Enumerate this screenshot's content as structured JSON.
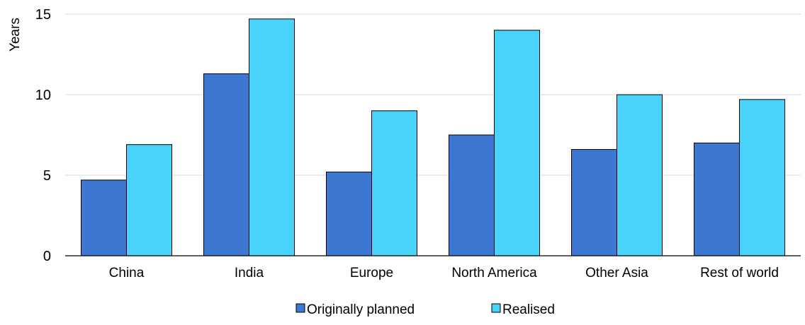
{
  "chart_data": {
    "type": "bar",
    "title": "",
    "xlabel": "",
    "ylabel": "Years",
    "ylim": [
      0,
      15
    ],
    "yticks": [
      0,
      5,
      10,
      15
    ],
    "grid": true,
    "legend_position": "bottom-center",
    "categories": [
      "China",
      "India",
      "Europe",
      "North America",
      "Other Asia",
      "Rest of world"
    ],
    "series": [
      {
        "name": "Originally planned",
        "color": "#3c78d2",
        "values": [
          4.7,
          11.3,
          5.2,
          7.5,
          6.6,
          7.0
        ]
      },
      {
        "name": "Realised",
        "color": "#49d3fb",
        "values": [
          6.9,
          14.7,
          9.0,
          14.0,
          10.0,
          9.7
        ]
      }
    ]
  }
}
